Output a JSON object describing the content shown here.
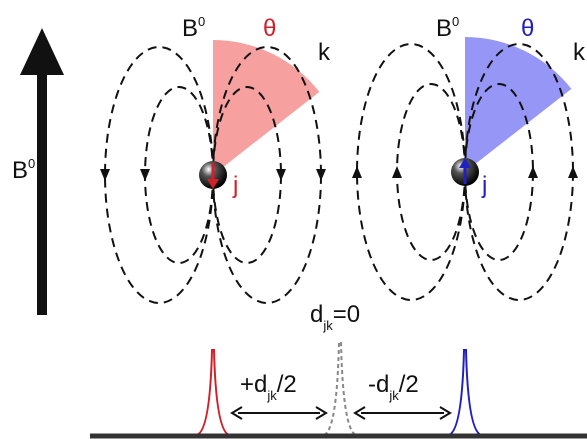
{
  "labels": {
    "field_axis": {
      "base": "B",
      "sup": "0"
    },
    "left_field": {
      "base": "B",
      "sup": "0"
    },
    "left_angle": "θ",
    "left_k": "k",
    "left_spin": "j",
    "right_field": {
      "base": "B",
      "sup": "0"
    },
    "right_angle": "θ",
    "right_k": "k",
    "right_spin": "j",
    "center_peak": {
      "base": "d",
      "sub": "jk",
      "rest": "=0"
    },
    "plus_shift": {
      "base": "+d",
      "sub": "jk",
      "rest": "/2"
    },
    "minus_shift": {
      "base": "-d",
      "sub": "jk",
      "rest": "/2"
    }
  }
}
